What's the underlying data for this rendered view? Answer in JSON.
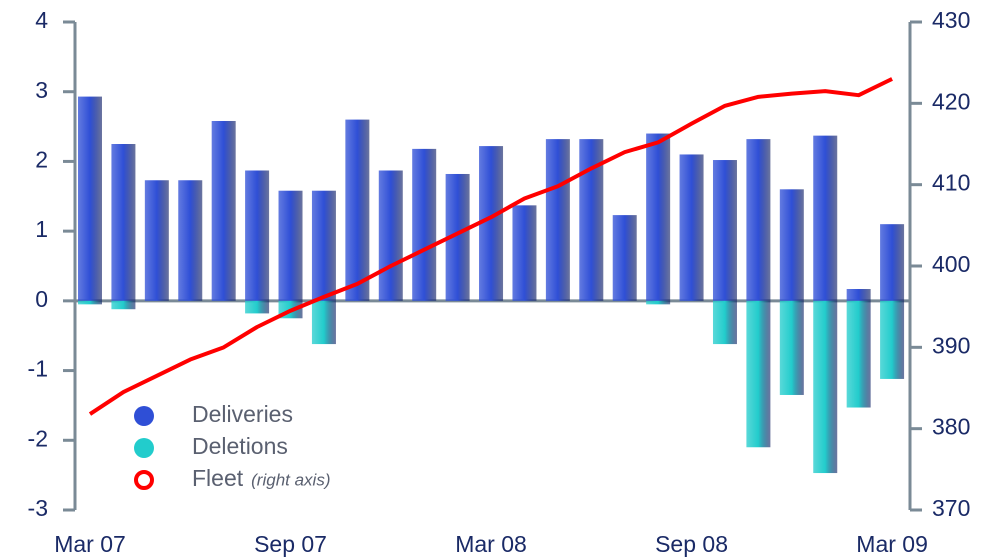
{
  "chart_data": {
    "type": "bar_line",
    "categories": [
      "Mar 07",
      null,
      null,
      null,
      null,
      null,
      "Sep 07",
      null,
      null,
      null,
      null,
      null,
      "Mar 08",
      null,
      null,
      null,
      null,
      null,
      "Sep 08",
      null,
      null,
      null,
      null,
      null,
      "Mar 09"
    ],
    "series": [
      {
        "name": "Deliveries",
        "color": "#2f4fd6",
        "values": [
          2.93,
          2.25,
          1.73,
          1.73,
          2.58,
          1.87,
          1.58,
          1.58,
          2.6,
          1.87,
          2.18,
          1.82,
          2.22,
          1.37,
          2.32,
          2.32,
          1.23,
          2.4,
          2.1,
          2.02,
          2.32,
          1.6,
          2.37,
          0.17,
          1.1
        ]
      },
      {
        "name": "Deletions",
        "color": "#22cccc",
        "values": [
          -0.05,
          -0.12,
          0,
          0,
          0,
          -0.18,
          -0.25,
          -0.62,
          0,
          0,
          0,
          0,
          0,
          0,
          0,
          0,
          0,
          -0.05,
          0,
          -0.62,
          -2.1,
          -1.35,
          -2.47,
          -1.53,
          -1.12
        ]
      },
      {
        "name": "Fleet",
        "color": "#ff0000",
        "axis": "y2",
        "values": [
          381.8,
          384.5,
          386.5,
          388.5,
          390,
          392.5,
          394.5,
          396.2,
          397.8,
          400,
          402,
          404,
          406,
          408.3,
          409.8,
          412,
          414,
          415.2,
          417.5,
          419.7,
          420.8,
          421.2,
          421.5,
          421,
          423
        ]
      }
    ],
    "fleet_note": "(right axis)",
    "ylim": [
      -3,
      4
    ],
    "yticks": [
      -3,
      -2,
      -1,
      0,
      1,
      2,
      3,
      4
    ],
    "y2lim": [
      370,
      430
    ],
    "y2ticks": [
      370,
      380,
      390,
      400,
      410,
      420,
      430
    ]
  }
}
